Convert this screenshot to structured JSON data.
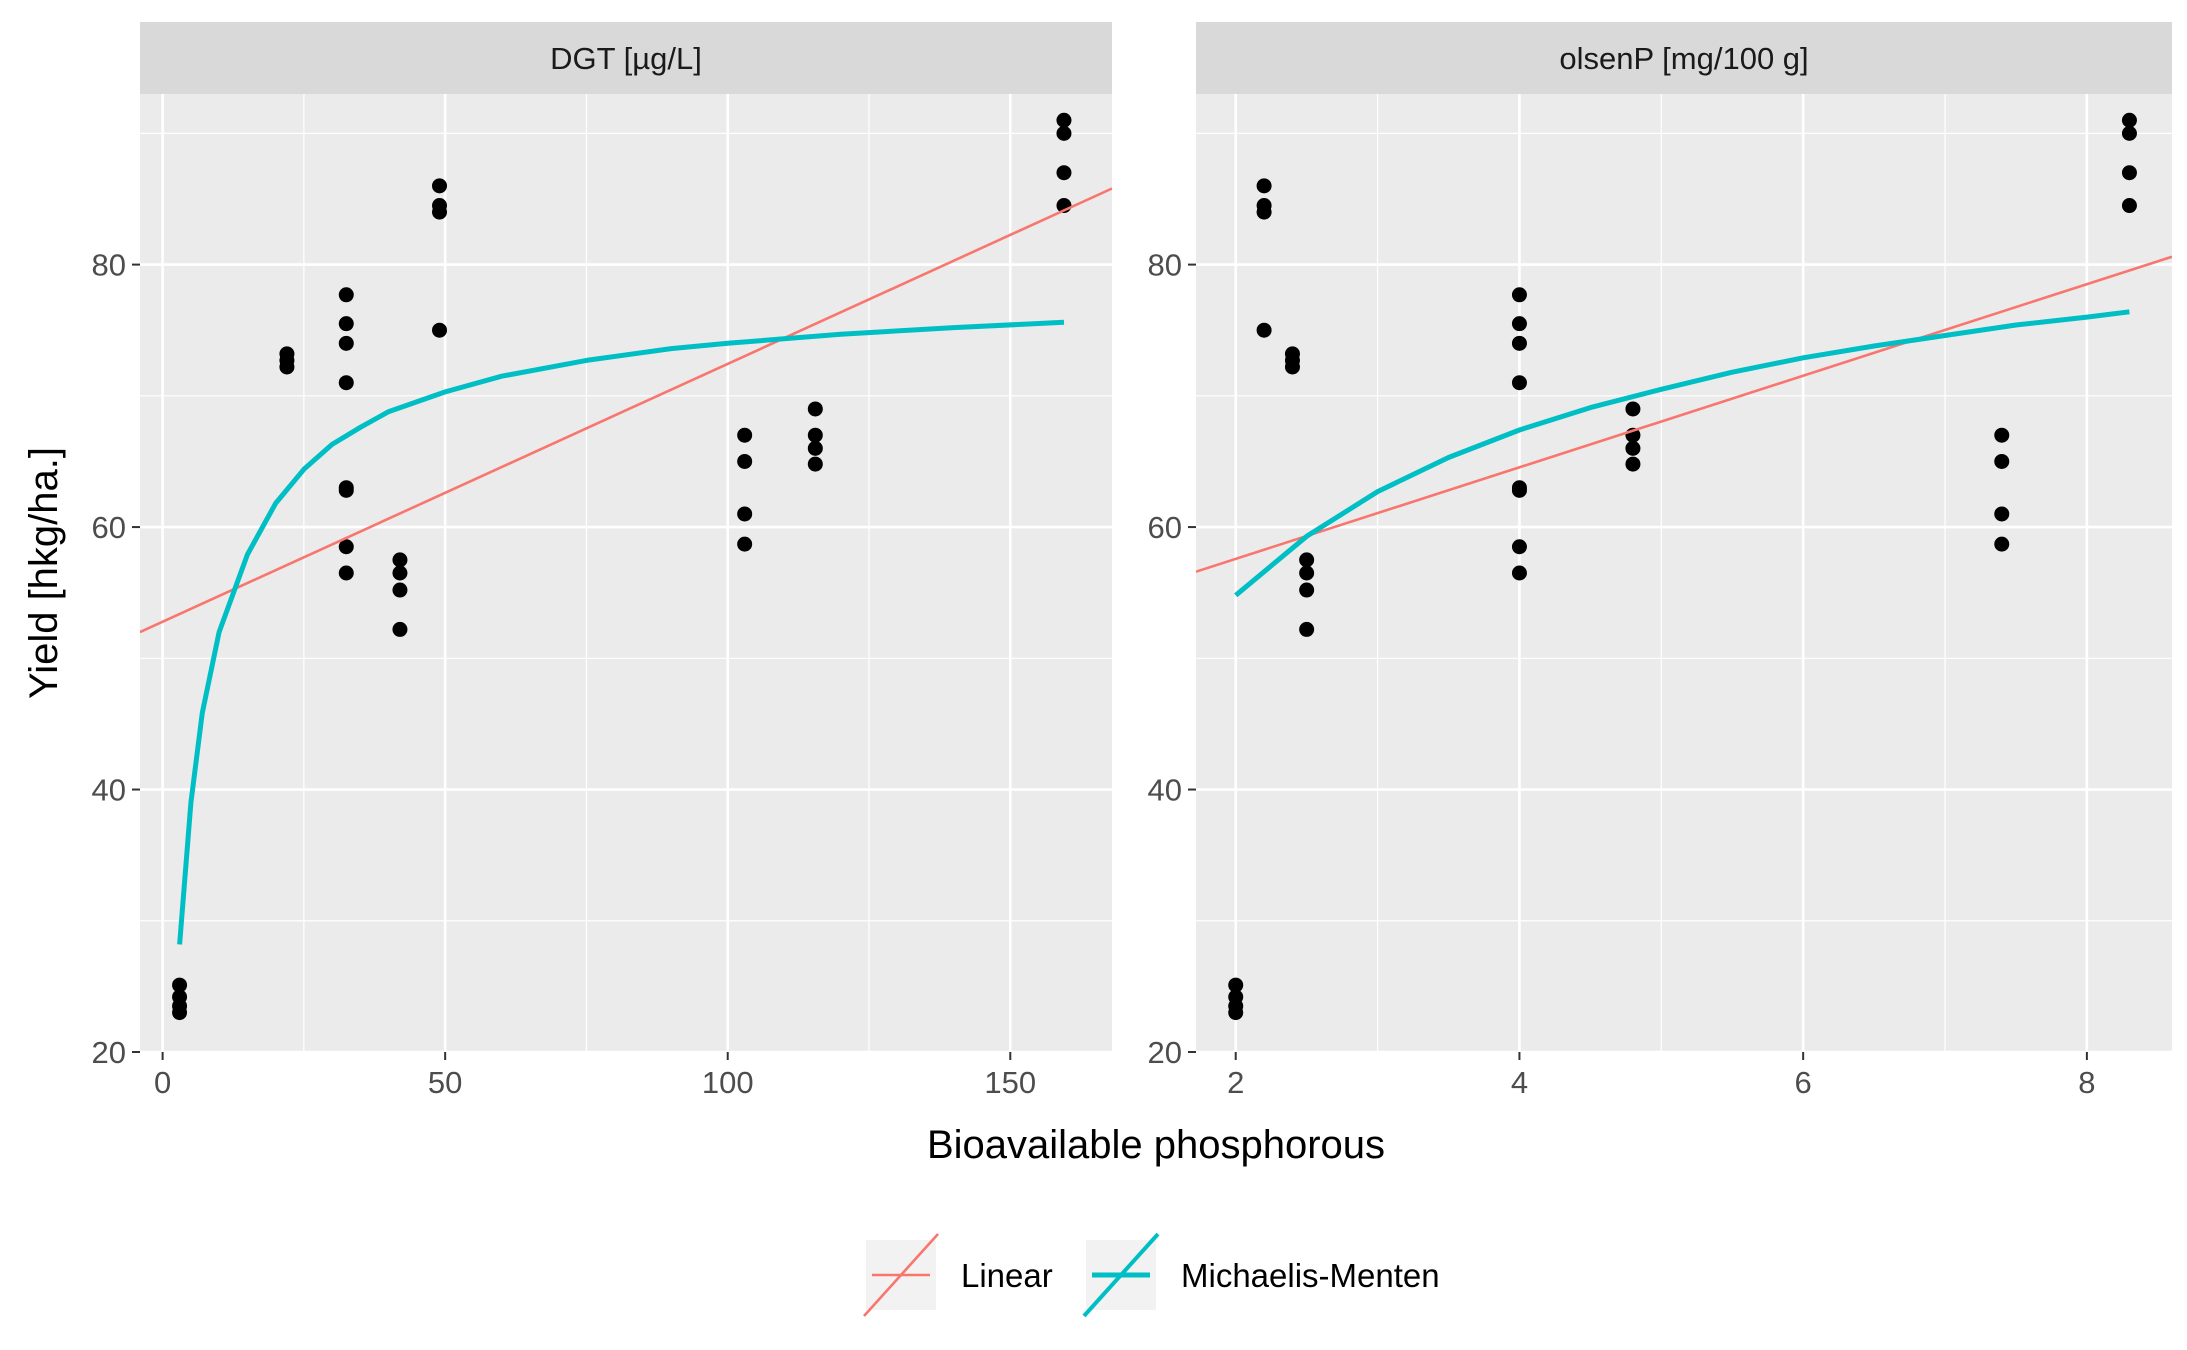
{
  "chart_data": {
    "type": "scatter",
    "xlabel": "Bioavailable phosphorous",
    "ylabel": "Yield [hkg/ha.]",
    "ylim": [
      20,
      93
    ],
    "y_ticks": [
      20,
      40,
      60,
      80
    ],
    "y_tick_labels": [
      "20",
      "40",
      "60",
      "80"
    ],
    "legend": {
      "position": "bottom",
      "entries": [
        {
          "label": "Linear",
          "color": "#F8766D"
        },
        {
          "label": "Michaelis-Menten",
          "color": "#00BFC4"
        }
      ]
    },
    "panels": [
      {
        "strip": "DGT [µg/L]",
        "xlim": [
          -4,
          168
        ],
        "x_ticks": [
          0,
          50,
          100,
          150
        ],
        "x_tick_labels": [
          "0",
          "50",
          "100",
          "150"
        ],
        "points": [
          [
            3,
            23
          ],
          [
            3,
            23.5
          ],
          [
            3,
            24.2
          ],
          [
            3,
            25.1
          ],
          [
            22,
            72.2
          ],
          [
            22,
            72.7
          ],
          [
            22,
            73.2
          ],
          [
            32.5,
            71
          ],
          [
            32.5,
            74
          ],
          [
            32.5,
            75.5
          ],
          [
            32.5,
            77.7
          ],
          [
            32.5,
            63
          ],
          [
            32.5,
            62.8
          ],
          [
            32.5,
            58.5
          ],
          [
            32.5,
            56.5
          ],
          [
            42,
            57.5
          ],
          [
            42,
            56.5
          ],
          [
            42,
            55.2
          ],
          [
            42,
            52.2
          ],
          [
            49,
            86
          ],
          [
            49,
            84.5
          ],
          [
            49,
            84
          ],
          [
            49,
            75
          ],
          [
            103,
            67
          ],
          [
            103,
            65
          ],
          [
            103,
            61
          ],
          [
            103,
            58.7
          ],
          [
            115.5,
            69
          ],
          [
            115.5,
            67
          ],
          [
            115.5,
            66
          ],
          [
            115.5,
            64.8
          ],
          [
            159.5,
            91
          ],
          [
            159.5,
            90
          ],
          [
            159.5,
            87
          ],
          [
            159.5,
            84.5
          ]
        ],
        "series": [
          {
            "name": "Linear",
            "type": "line",
            "x": [
              -4,
              168
            ],
            "y": [
              52.0,
              85.8
            ]
          },
          {
            "name": "Michaelis-Menten",
            "type": "line",
            "x": [
              3,
              5,
              7,
              10,
              15,
              20,
              25,
              30,
              35,
              40,
              50,
              60,
              75,
              90,
              100,
              120,
              140,
              159.5
            ],
            "y": [
              28.2,
              39.0,
              45.8,
              52.0,
              57.9,
              61.8,
              64.4,
              66.3,
              67.6,
              68.8,
              70.3,
              71.5,
              72.7,
              73.6,
              74.0,
              74.7,
              75.2,
              75.6
            ]
          }
        ]
      },
      {
        "strip": "olsenP [mg/100 g]",
        "xlim": [
          1.72,
          8.6
        ],
        "x_ticks": [
          2,
          4,
          6,
          8
        ],
        "x_tick_labels": [
          "2",
          "4",
          "6",
          "8"
        ],
        "points": [
          [
            2,
            23
          ],
          [
            2,
            23.5
          ],
          [
            2,
            24.2
          ],
          [
            2,
            25.1
          ],
          [
            2.2,
            86
          ],
          [
            2.2,
            84.5
          ],
          [
            2.2,
            84
          ],
          [
            2.2,
            75
          ],
          [
            2.4,
            72.2
          ],
          [
            2.4,
            72.7
          ],
          [
            2.4,
            73.2
          ],
          [
            2.5,
            57.5
          ],
          [
            2.5,
            56.5
          ],
          [
            2.5,
            55.2
          ],
          [
            2.5,
            52.2
          ],
          [
            4,
            71
          ],
          [
            4,
            74
          ],
          [
            4,
            75.5
          ],
          [
            4,
            77.7
          ],
          [
            4,
            63
          ],
          [
            4,
            62.8
          ],
          [
            4,
            58.5
          ],
          [
            4,
            56.5
          ],
          [
            4.8,
            69
          ],
          [
            4.8,
            67
          ],
          [
            4.8,
            66
          ],
          [
            4.8,
            64.8
          ],
          [
            7.4,
            67
          ],
          [
            7.4,
            65
          ],
          [
            7.4,
            61
          ],
          [
            7.4,
            58.7
          ],
          [
            8.3,
            91
          ],
          [
            8.3,
            90
          ],
          [
            8.3,
            87
          ],
          [
            8.3,
            84.5
          ]
        ],
        "series": [
          {
            "name": "Linear",
            "type": "line",
            "x": [
              1.72,
              8.6
            ],
            "y": [
              56.6,
              80.6
            ]
          },
          {
            "name": "Michaelis-Menten",
            "type": "line",
            "x": [
              2,
              2.5,
              3,
              3.5,
              4,
              4.5,
              5,
              5.5,
              6,
              6.5,
              7,
              7.5,
              8,
              8.3
            ],
            "y": [
              54.8,
              59.3,
              62.7,
              65.3,
              67.4,
              69.1,
              70.5,
              71.8,
              72.9,
              73.8,
              74.6,
              75.4,
              76.0,
              76.4
            ]
          }
        ]
      }
    ]
  }
}
